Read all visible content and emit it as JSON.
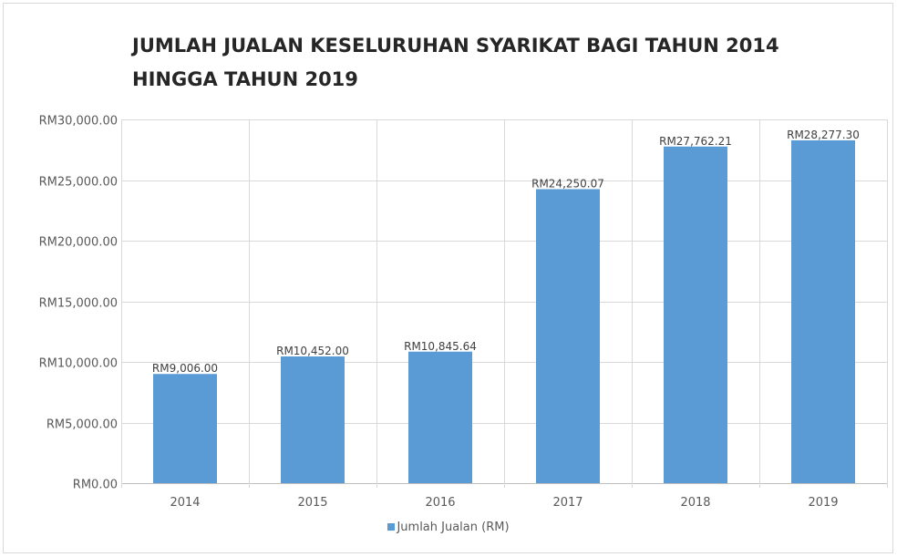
{
  "chart_data": {
    "type": "bar",
    "title": "JUMLAH JUALAN KESELURUHAN SYARIKAT BAGI TAHUN 2014 HINGGA TAHUN 2019",
    "categories": [
      "2014",
      "2015",
      "2016",
      "2017",
      "2018",
      "2019"
    ],
    "series": [
      {
        "name": "Jumlah Jualan (RM)",
        "values": [
          9006.0,
          10452.0,
          10845.64,
          24250.07,
          27762.21,
          28277.3
        ],
        "data_labels": [
          "RM9,006.00",
          "RM10,452.00",
          "RM10,845.64",
          "RM24,250.07",
          "RM27,762.21",
          "RM28,277.30"
        ],
        "color": "#5b9bd5"
      }
    ],
    "y_ticks": [
      0,
      5000,
      10000,
      15000,
      20000,
      25000,
      30000
    ],
    "y_tick_labels": [
      "RM0.00",
      "RM5,000.00",
      "RM10,000.00",
      "RM15,000.00",
      "RM20,000.00",
      "RM25,000.00",
      "RM30,000.00"
    ],
    "ylim": [
      0,
      30000
    ],
    "xlabel": "",
    "ylabel": "",
    "grid": true,
    "legend_position": "bottom"
  }
}
